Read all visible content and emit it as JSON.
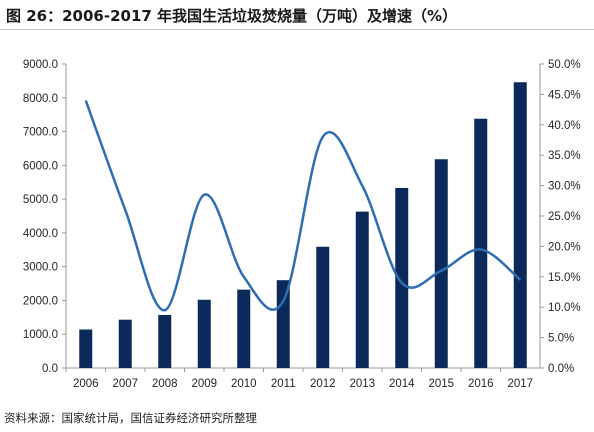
{
  "title": "图 26：2006-2017 年我国生活垃圾焚烧量（万吨）及增速（%）",
  "source": "资料来源：国家统计局，国信证券经济研究所整理",
  "colors": {
    "bar": "#0b2a5b",
    "line": "#2f6db2",
    "axis": "#9a9a9a",
    "text": "#262626"
  },
  "chart_data": {
    "type": "bar",
    "title": "图 26：2006-2017 年我国生活垃圾焚烧量（万吨）及增速（%）",
    "categories": [
      "2006",
      "2007",
      "2008",
      "2009",
      "2010",
      "2011",
      "2012",
      "2013",
      "2014",
      "2015",
      "2016",
      "2017"
    ],
    "series": [
      {
        "type": "bar",
        "axis": "left",
        "values": [
          1140,
          1430,
          1570,
          2020,
          2320,
          2600,
          3590,
          4630,
          5330,
          6180,
          7380,
          8460
        ]
      },
      {
        "type": "line",
        "axis": "right",
        "values": [
          44.0,
          26.0,
          9.5,
          28.5,
          15.0,
          11.0,
          38.0,
          30.0,
          14.0,
          16.0,
          19.5,
          14.5
        ]
      }
    ],
    "y_left": {
      "min": 0,
      "max": 9000,
      "step": 1000,
      "tick_labels": [
        "0.0",
        "1000.0",
        "2000.0",
        "3000.0",
        "4000.0",
        "5000.0",
        "6000.0",
        "7000.0",
        "8000.0",
        "9000.0"
      ]
    },
    "y_right": {
      "min": 0,
      "max": 50,
      "step": 5,
      "tick_labels": [
        "0.0%",
        "5.0%",
        "10.0%",
        "15.0%",
        "20.0%",
        "25.0%",
        "30.0%",
        "35.0%",
        "40.0%",
        "45.0%",
        "50.0%"
      ]
    },
    "grid": false,
    "legend": "none"
  }
}
